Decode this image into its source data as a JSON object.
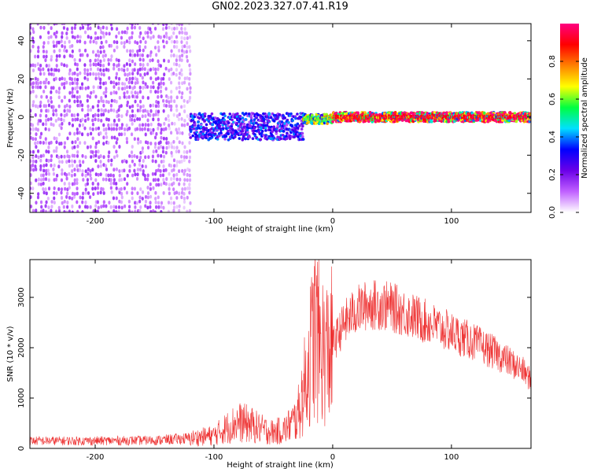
{
  "title": "GN02.2023.327.07.41.R19",
  "chart_data": [
    {
      "type": "heatmap",
      "xlabel": "Height of straight line (km)",
      "ylabel": "Frequency (Hz)",
      "xlim": [
        -255,
        167
      ],
      "ylim": [
        -50,
        49
      ],
      "xticks": [
        -200,
        -100,
        0,
        100
      ],
      "yticks": [
        -40,
        -20,
        0,
        20,
        40
      ],
      "colorbar": {
        "label": "Normalized spectral amplitude",
        "range": [
          0.0,
          1.0
        ],
        "ticks": [
          0.0,
          0.2,
          0.4,
          0.6,
          0.8
        ],
        "colors": [
          "#ffffff",
          "#c060ff",
          "#6a00e8",
          "#0000ff",
          "#00e0ff",
          "#00ff40",
          "#ffff00",
          "#ff8000",
          "#ff0000",
          "#ff0080"
        ]
      },
      "regions": [
        {
          "x": [
            -255,
            -120
          ],
          "freq_range": [
            -50,
            49
          ],
          "amplitude": 0.1
        },
        {
          "x": [
            -120,
            -25
          ],
          "freq_center": -5,
          "freq_width": 14,
          "amplitude": 0.3
        },
        {
          "x": [
            -25,
            0
          ],
          "freq_center": -1,
          "freq_width": 5,
          "amplitude": 0.6
        },
        {
          "x": [
            0,
            167
          ],
          "freq_center": 0,
          "freq_width": 5,
          "amplitude": 0.9
        }
      ]
    },
    {
      "type": "line",
      "xlabel": "Height of straight line (km)",
      "ylabel": "SNR (10 * v/v)",
      "xlim": [
        -255,
        167
      ],
      "ylim": [
        0,
        3750
      ],
      "xticks": [
        -200,
        -100,
        0,
        100
      ],
      "yticks": [
        0,
        1000,
        2000,
        3000
      ],
      "color": "#ee3333",
      "series": [
        {
          "x": [
            -255,
            -200,
            -150,
            -120,
            -100,
            -90,
            -80,
            -70,
            -60,
            -50,
            -40,
            -30,
            -25,
            -20,
            -15,
            -10,
            -5,
            0,
            10,
            20,
            30,
            40,
            50,
            60,
            80,
            100,
            120,
            140,
            160,
            167
          ],
          "y": [
            150,
            150,
            160,
            200,
            260,
            400,
            520,
            480,
            380,
            320,
            380,
            600,
            1100,
            1700,
            2400,
            2000,
            1900,
            2050,
            2500,
            2750,
            2850,
            2850,
            2800,
            2700,
            2500,
            2300,
            2100,
            1850,
            1550,
            1350
          ]
        }
      ]
    }
  ]
}
